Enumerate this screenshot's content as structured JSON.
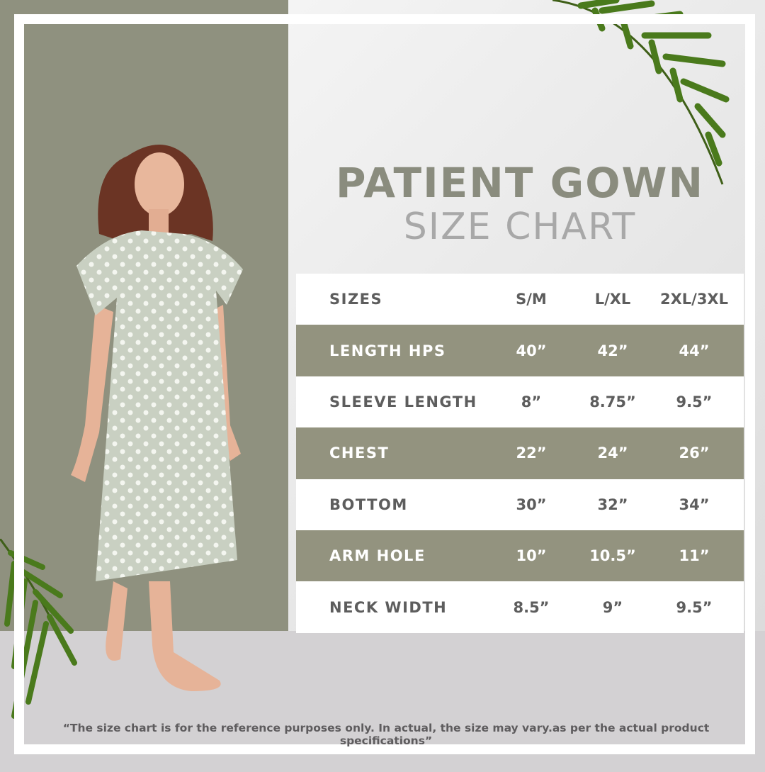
{
  "title": "PATIENT GOWN",
  "subtitle": "SIZE CHART",
  "colors": {
    "olive": "#8f917f",
    "title": "#8a8c7e",
    "row_gray": "#93937f",
    "leaf": "#4a7a1c"
  },
  "table": {
    "headers": [
      "SIZES",
      "S/M",
      "L/XL",
      "2XL/3XL"
    ],
    "rows": [
      [
        "LENGTH HPS",
        "40”",
        "42”",
        "44”"
      ],
      [
        "SLEEVE LENGTH",
        "8”",
        "8.75”",
        "9.5”"
      ],
      [
        "CHEST",
        "22”",
        "24”",
        "26”"
      ],
      [
        "BOTTOM",
        "30”",
        "32”",
        "34”"
      ],
      [
        "ARM HOLE",
        "10”",
        "10.5”",
        "11”"
      ],
      [
        "NECK WIDTH",
        "8.5”",
        "9”",
        "9.5”"
      ]
    ]
  },
  "footer": "“The size chart is for the reference purposes only. In actual, the size may vary.as per the actual product specifications”"
}
